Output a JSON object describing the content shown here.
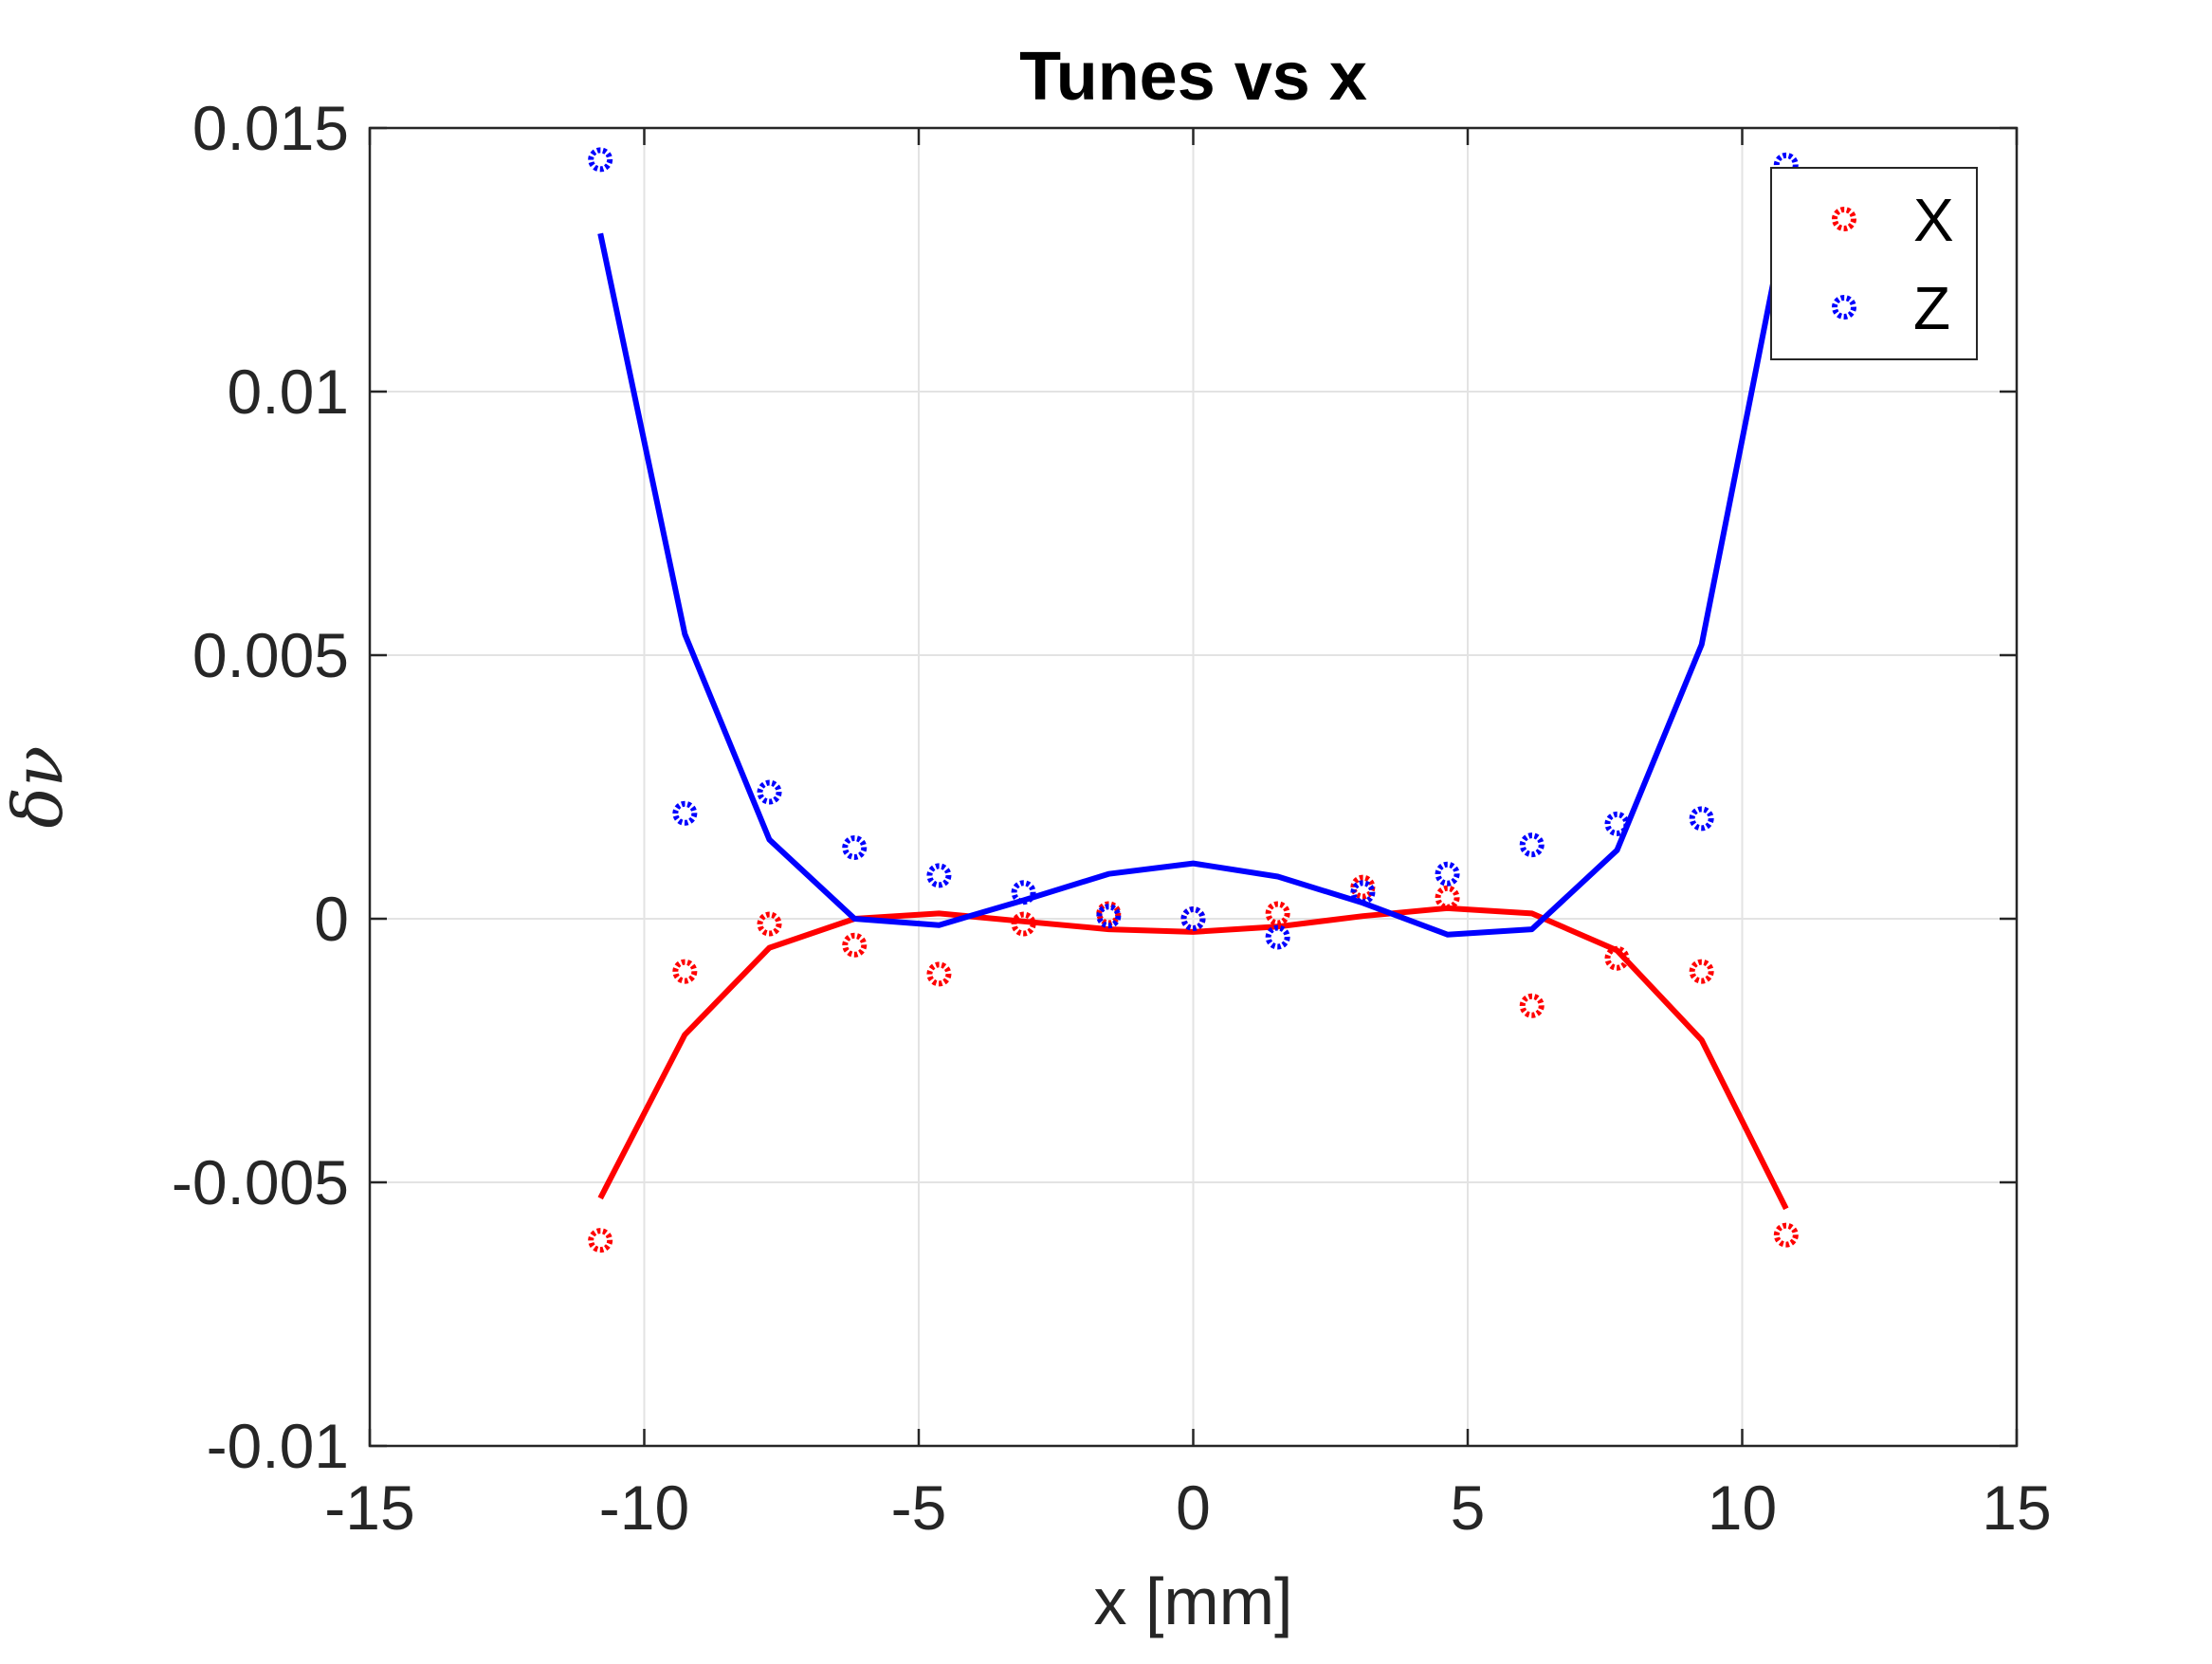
{
  "chart_data": {
    "type": "scatter",
    "title": "Tunes vs x",
    "xlabel": "x [mm]",
    "ylabel": "δν",
    "xlim": [
      -15,
      15
    ],
    "ylim": [
      -0.01,
      0.015
    ],
    "xticks": [
      -15,
      -10,
      -5,
      0,
      5,
      10,
      15
    ],
    "yticks": [
      -0.01,
      -0.005,
      0,
      0.005,
      0.01,
      0.015
    ],
    "xtick_labels": [
      "-15",
      "-10",
      "-5",
      "0",
      "5",
      "10",
      "15"
    ],
    "ytick_labels": [
      "-0.01",
      "-0.005",
      "0",
      "0.005",
      "0.01",
      "0.015"
    ],
    "grid": true,
    "legend_position": "top-right",
    "x": [
      -10.8,
      -9.26,
      -7.72,
      -6.17,
      -4.63,
      -3.09,
      -1.54,
      0,
      1.54,
      3.09,
      4.63,
      6.17,
      7.72,
      9.26,
      10.8
    ],
    "series": [
      {
        "name": "X",
        "color": "#ff0000",
        "markers": [
          -0.0061,
          -0.001,
          -0.0001,
          -0.0005,
          -0.00105,
          -0.0001,
          0.0001,
          0.0,
          0.0001,
          0.0006,
          0.0004,
          -0.00165,
          -0.00075,
          -0.001,
          -0.006
        ],
        "line": [
          -0.0053,
          -0.0022,
          -0.00055,
          0.0,
          0.0001,
          -5e-05,
          -0.0002,
          -0.00025,
          -0.00015,
          5e-05,
          0.0002,
          0.0001,
          -0.0006,
          -0.0023,
          -0.0055
        ]
      },
      {
        "name": "Z",
        "color": "#0000ff",
        "markers": [
          0.0144,
          0.002,
          0.0024,
          0.00135,
          0.00082,
          0.0005,
          5e-05,
          0.0,
          -0.00035,
          0.0005,
          0.00085,
          0.0014,
          0.0018,
          0.0019,
          0.0143
        ],
        "line": [
          0.013,
          0.0054,
          0.0015,
          0.0,
          -0.00012,
          0.00035,
          0.00085,
          0.00105,
          0.0008,
          0.0003,
          -0.0003,
          -0.0002,
          0.0013,
          0.0052,
          0.0133
        ]
      }
    ]
  }
}
